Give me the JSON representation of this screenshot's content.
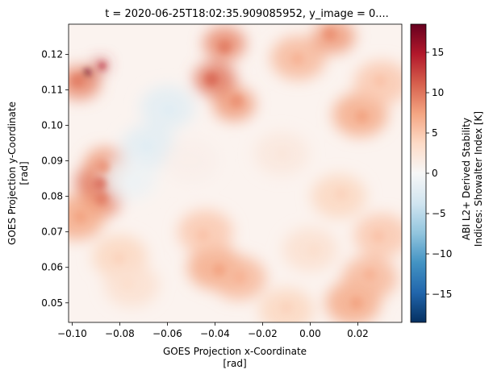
{
  "chart_data": {
    "type": "heatmap",
    "title": "t = 2020-06-25T18:02:35.909085952, y_image = 0....",
    "xlabel": "GOES Projection x-Coordinate",
    "xlabel_unit": "[rad]",
    "ylabel": "GOES Projection y-Coordinate",
    "ylabel_unit": "[rad]",
    "xlim": [
      -0.1015,
      0.0385
    ],
    "ylim": [
      0.0445,
      0.1285
    ],
    "x_ticks": [
      -0.1,
      -0.08,
      -0.06,
      -0.04,
      -0.02,
      0.0,
      0.02
    ],
    "x_tick_labels": [
      "−0.10",
      "−0.08",
      "−0.06",
      "−0.04",
      "−0.02",
      "0.00",
      "0.02"
    ],
    "y_ticks": [
      0.05,
      0.06,
      0.07,
      0.08,
      0.09,
      0.1,
      0.11,
      0.12
    ],
    "y_tick_labels": [
      "0.05",
      "0.06",
      "0.07",
      "0.08",
      "0.09",
      "0.10",
      "0.11",
      "0.12"
    ],
    "colorbar": {
      "label_line1": "ABI L2+ Derived Stability",
      "label_line2": "Indices: Showalter Index [K]",
      "colormap": "RdBu_r",
      "vmin": -18.5,
      "vmax": 18.5,
      "ticks": [
        -15,
        -10,
        -5,
        0,
        5,
        10,
        15
      ],
      "tick_labels": [
        "−15",
        "−10",
        "−5",
        "0",
        "5",
        "10",
        "15"
      ]
    },
    "grid": false,
    "field_features": [
      {
        "x": -0.092,
        "y": 0.114,
        "value": 17
      },
      {
        "x": -0.088,
        "y": 0.117,
        "value": 13
      },
      {
        "x": -0.097,
        "y": 0.112,
        "value": 9
      },
      {
        "x": -0.09,
        "y": 0.084,
        "value": 10
      },
      {
        "x": -0.088,
        "y": 0.079,
        "value": 9
      },
      {
        "x": -0.086,
        "y": 0.089,
        "value": 8
      },
      {
        "x": -0.098,
        "y": 0.074,
        "value": 7
      },
      {
        "x": -0.036,
        "y": 0.123,
        "value": 9
      },
      {
        "x": -0.04,
        "y": 0.113,
        "value": 10
      },
      {
        "x": -0.032,
        "y": 0.106,
        "value": 8
      },
      {
        "x": -0.005,
        "y": 0.119,
        "value": 6
      },
      {
        "x": 0.01,
        "y": 0.125,
        "value": 8
      },
      {
        "x": 0.021,
        "y": 0.103,
        "value": 7
      },
      {
        "x": 0.03,
        "y": 0.112,
        "value": 5
      },
      {
        "x": -0.04,
        "y": 0.06,
        "value": 7
      },
      {
        "x": -0.03,
        "y": 0.057,
        "value": 6
      },
      {
        "x": -0.044,
        "y": 0.07,
        "value": 5
      },
      {
        "x": 0.018,
        "y": 0.05,
        "value": 7
      },
      {
        "x": 0.025,
        "y": 0.057,
        "value": 6
      },
      {
        "x": 0.03,
        "y": 0.069,
        "value": 5
      },
      {
        "x": 0.012,
        "y": 0.08,
        "value": 4
      },
      {
        "x": -0.08,
        "y": 0.063,
        "value": 4
      },
      {
        "x": -0.075,
        "y": 0.055,
        "value": 3
      },
      {
        "x": -0.06,
        "y": 0.105,
        "value": -2
      },
      {
        "x": -0.068,
        "y": 0.094,
        "value": -2
      },
      {
        "x": -0.076,
        "y": 0.085,
        "value": -1
      },
      {
        "x": -0.012,
        "y": 0.092,
        "value": 2
      },
      {
        "x": -0.05,
        "y": 0.09,
        "value": 1
      },
      {
        "x": 0.0,
        "y": 0.065,
        "value": 3
      },
      {
        "x": -0.01,
        "y": 0.048,
        "value": 4
      }
    ]
  }
}
